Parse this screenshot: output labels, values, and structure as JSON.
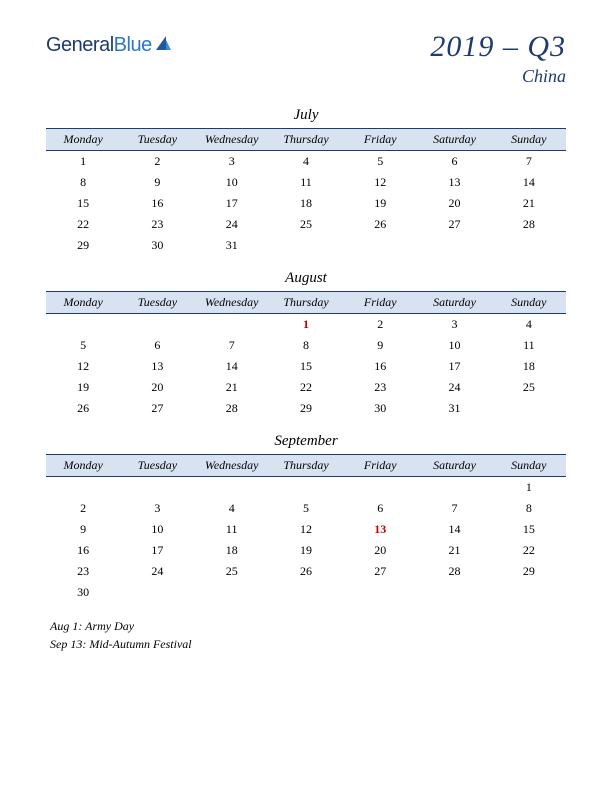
{
  "logo": {
    "part1": "General",
    "part2": "Blue"
  },
  "title": {
    "main": "2019 – Q3",
    "sub": "China"
  },
  "colors": {
    "header_bg": "#d8e3f2",
    "border": "#1f3a6e",
    "holiday": "#c00000",
    "title": "#1f3a6e"
  },
  "dayHeaders": [
    "Monday",
    "Tuesday",
    "Wednesday",
    "Thursday",
    "Friday",
    "Saturday",
    "Sunday"
  ],
  "months": [
    {
      "name": "July",
      "weeks": [
        [
          "1",
          "2",
          "3",
          "4",
          "5",
          "6",
          "7"
        ],
        [
          "8",
          "9",
          "10",
          "11",
          "12",
          "13",
          "14"
        ],
        [
          "15",
          "16",
          "17",
          "18",
          "19",
          "20",
          "21"
        ],
        [
          "22",
          "23",
          "24",
          "25",
          "26",
          "27",
          "28"
        ],
        [
          "29",
          "30",
          "31",
          "",
          "",
          "",
          ""
        ]
      ],
      "holidays": []
    },
    {
      "name": "August",
      "weeks": [
        [
          "",
          "",
          "",
          "1",
          "2",
          "3",
          "4"
        ],
        [
          "5",
          "6",
          "7",
          "8",
          "9",
          "10",
          "11"
        ],
        [
          "12",
          "13",
          "14",
          "15",
          "16",
          "17",
          "18"
        ],
        [
          "19",
          "20",
          "21",
          "22",
          "23",
          "24",
          "25"
        ],
        [
          "26",
          "27",
          "28",
          "29",
          "30",
          "31",
          ""
        ]
      ],
      "holidays": [
        {
          "week": 0,
          "day": 3
        }
      ]
    },
    {
      "name": "September",
      "weeks": [
        [
          "",
          "",
          "",
          "",
          "",
          "",
          "1"
        ],
        [
          "2",
          "3",
          "4",
          "5",
          "6",
          "7",
          "8"
        ],
        [
          "9",
          "10",
          "11",
          "12",
          "13",
          "14",
          "15"
        ],
        [
          "16",
          "17",
          "18",
          "19",
          "20",
          "21",
          "22"
        ],
        [
          "23",
          "24",
          "25",
          "26",
          "27",
          "28",
          "29"
        ],
        [
          "30",
          "",
          "",
          "",
          "",
          "",
          ""
        ]
      ],
      "holidays": [
        {
          "week": 2,
          "day": 4
        }
      ]
    }
  ],
  "notes": [
    "Aug 1: Army Day",
    "Sep 13: Mid-Autumn Festival"
  ]
}
